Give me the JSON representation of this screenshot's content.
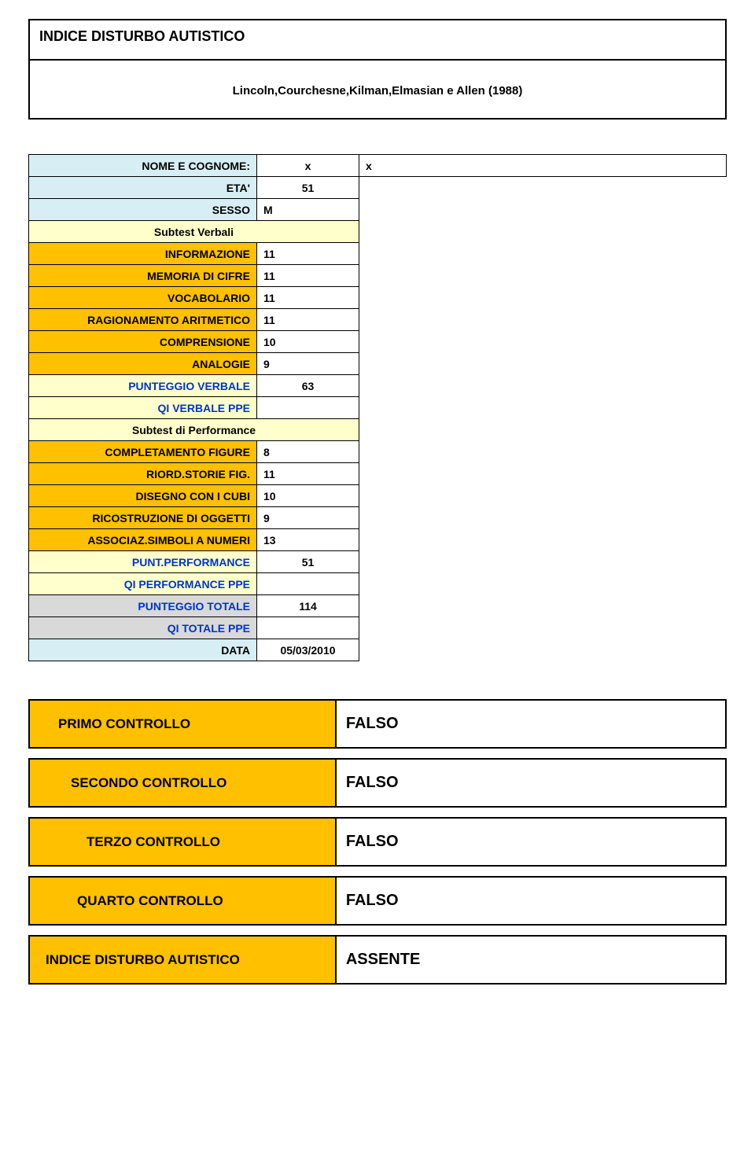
{
  "header": {
    "title": "INDICE DISTURBO AUTISTICO",
    "subtitle": "Lincoln,Courchesne,Kilman,Elmasian e Allen (1988)"
  },
  "form": {
    "nome_label": "NOME E COGNOME:",
    "nome_val1": "x",
    "nome_val2": "x",
    "eta_label": "ETA'",
    "eta_val": "51",
    "sesso_label": "SESSO",
    "sesso_val": "M",
    "subtest_verbali": "Subtest Verbali",
    "rows_verbali": [
      {
        "label": "INFORMAZIONE",
        "val": "11"
      },
      {
        "label": "MEMORIA DI CIFRE",
        "val": "11"
      },
      {
        "label": "VOCABOLARIO",
        "val": "11"
      },
      {
        "label": "RAGIONAMENTO ARITMETICO",
        "val": "11"
      },
      {
        "label": "COMPRENSIONE",
        "val": "10"
      },
      {
        "label": "ANALOGIE",
        "val": "9"
      }
    ],
    "punteggio_verbale_label": "PUNTEGGIO VERBALE",
    "punteggio_verbale_val": "63",
    "qi_verbale_label": "QI VERBALE PPE",
    "qi_verbale_val": "",
    "subtest_perf": "Subtest di Performance",
    "rows_perf": [
      {
        "label": "COMPLETAMENTO FIGURE",
        "val": "8"
      },
      {
        "label": "RIORD.STORIE FIG.",
        "val": "11"
      },
      {
        "label": "DISEGNO CON I CUBI",
        "val": "10"
      },
      {
        "label": "RICOSTRUZIONE DI OGGETTI",
        "val": "9"
      },
      {
        "label": "ASSOCIAZ.SIMBOLI A NUMERI",
        "val": "13"
      }
    ],
    "punt_perf_label": "PUNT.PERFORMANCE",
    "punt_perf_val": "51",
    "qi_perf_label": "QI PERFORMANCE PPE",
    "qi_perf_val": "",
    "punt_totale_label": "PUNTEGGIO TOTALE",
    "punt_totale_val": "114",
    "qi_totale_label": "QI TOTALE PPE",
    "qi_totale_val": "",
    "data_label": "DATA",
    "data_val": "05/03/2010"
  },
  "controls": [
    {
      "label": "PRIMO CONTROLLO",
      "value": "FALSO",
      "pad": "pad-1"
    },
    {
      "label": "SECONDO CONTROLLO",
      "value": "FALSO",
      "pad": "pad-2"
    },
    {
      "label": "TERZO CONTROLLO",
      "value": "FALSO",
      "pad": "pad-3"
    },
    {
      "label": "QUARTO CONTROLLO",
      "value": "FALSO",
      "pad": "pad-4"
    },
    {
      "label": "INDICE DISTURBO AUTISTICO",
      "value": "ASSENTE",
      "pad": "pad-5"
    }
  ],
  "colors": {
    "orange": "#ffc000",
    "light_blue": "#d7eef4",
    "light_yellow": "#ffffcc",
    "gray": "#d9d9d9",
    "blue_text": "#0033cc"
  }
}
